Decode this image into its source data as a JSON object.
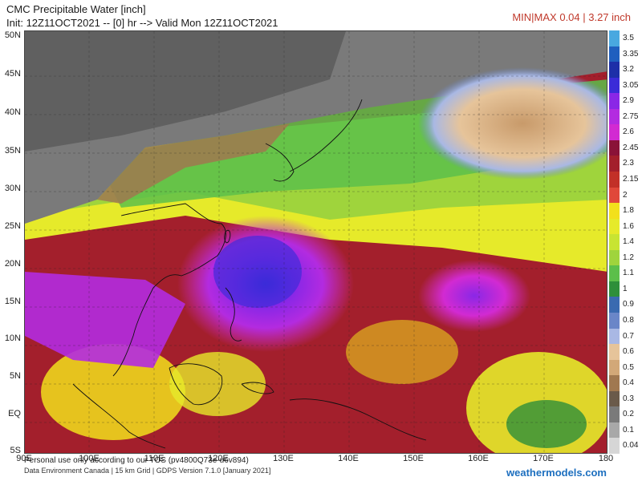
{
  "header": {
    "title": "CMC Precipitable Water [inch]",
    "init_line": "Init: 12Z11OCT2021 -- [0] hr --> Valid Mon 12Z11OCT2021",
    "minmax": "MIN|MAX 0.04 | 3.27 inch"
  },
  "map": {
    "lat_labels": [
      "50N",
      "45N",
      "40N",
      "35N",
      "30N",
      "25N",
      "20N",
      "15N",
      "10N",
      "5N",
      "EQ",
      "5S"
    ],
    "lon_labels": [
      "90E",
      "100E",
      "110E",
      "120E",
      "130E",
      "140E",
      "150E",
      "160E",
      "170E",
      "180"
    ]
  },
  "legend": {
    "levels": [
      {
        "label": "3.5",
        "color": "#49a8e0"
      },
      {
        "label": "3.35",
        "color": "#1f5fbf"
      },
      {
        "label": "3.2",
        "color": "#1d2fa8"
      },
      {
        "label": "3.05",
        "color": "#3b2bd8"
      },
      {
        "label": "2.9",
        "color": "#8a27e6"
      },
      {
        "label": "2.75",
        "color": "#b32be0"
      },
      {
        "label": "2.6",
        "color": "#d22ad2"
      },
      {
        "label": "2.45",
        "color": "#8a1238"
      },
      {
        "label": "2.3",
        "color": "#a31f2c"
      },
      {
        "label": "2.15",
        "color": "#c23028"
      },
      {
        "label": "2",
        "color": "#e0483a"
      },
      {
        "label": "1.8",
        "color": "#f2e01c"
      },
      {
        "label": "1.6",
        "color": "#e6ea2a"
      },
      {
        "label": "1.4",
        "color": "#c8e432"
      },
      {
        "label": "1.2",
        "color": "#9fd43c"
      },
      {
        "label": "1.1",
        "color": "#5cbf4a"
      },
      {
        "label": "1",
        "color": "#2e8f3a"
      },
      {
        "label": "0.9",
        "color": "#3a6ab0"
      },
      {
        "label": "0.8",
        "color": "#6a86c8"
      },
      {
        "label": "0.7",
        "color": "#a9b8e4"
      },
      {
        "label": "0.6",
        "color": "#e6c49a"
      },
      {
        "label": "0.5",
        "color": "#d2a878"
      },
      {
        "label": "0.4",
        "color": "#a07850"
      },
      {
        "label": "0.3",
        "color": "#6a5a4a"
      },
      {
        "label": "0.2",
        "color": "#7a7a7a"
      },
      {
        "label": "0.1",
        "color": "#a8a8a8"
      },
      {
        "label": "0.04",
        "color": "#d6d6d6"
      }
    ]
  },
  "footer": {
    "disclaimer": "Personal use only according to our TOS (pv4800Q73e-u6v894)",
    "credit": "Data Environment Canada | 15 km Grid | GDPS Version 7.1.0 [January 2021]",
    "brand": "weathermodels.com"
  }
}
